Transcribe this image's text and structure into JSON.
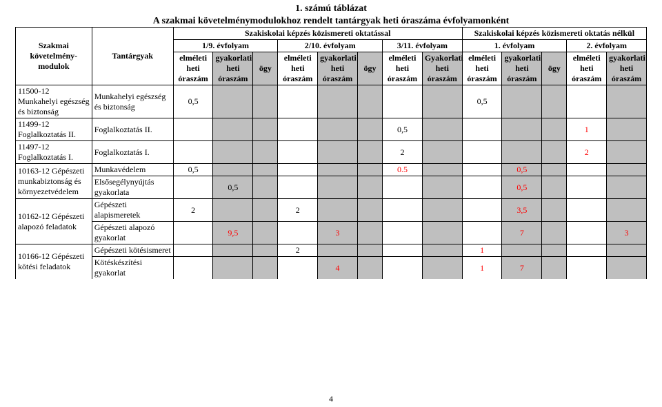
{
  "title": {
    "line1": "1. számú táblázat",
    "line2": "A szakmai követelménymodulokhoz rendelt tantárgyak heti óraszáma évfolyamonként"
  },
  "headers": {
    "module": "Szakmai követelmény-modulok",
    "subject": "Tantárgyak",
    "group_left": "Szakiskolai képzés közismereti oktatással",
    "group_right": "Szakiskolai képzés közismereti oktatás nélkül",
    "year_1_9": "1/9. évfolyam",
    "year_2_10": "2/10. évfolyam",
    "year_3_11": "3/11. évfolyam",
    "year_1": "1. évfolyam",
    "year_2": "2. évfolyam",
    "elm": "elméleti heti óraszám",
    "gyak": "gyakorlati heti óraszám",
    "gyak_cap": "Gyakorlati heti óraszám",
    "ogy": "ögy"
  },
  "modules": {
    "m1": "11500-12 Munkahelyi egészség és biztonság",
    "m2": "11499-12 Foglalkoztatás II.",
    "m3": "11497-12 Foglalkoztatás I.",
    "m4": "10163-12 Gépészeti munkabiztonság és környezetvédelem",
    "m5": "10162-12 Gépészeti alapozó feladatok",
    "m6": "10166-12 Gépészeti kötési feladatok"
  },
  "subjects": {
    "s1": "Munkahelyi egészség és biztonság",
    "s2": "Foglalkoztatás II.",
    "s3": "Foglalkoztatás I.",
    "s4a": "Munkavédelem",
    "s4b": "Elsősegélynyújtás gyakorlata",
    "s5a": "Gépészeti alapismeretek",
    "s5b": "Gépészeti alapozó gyakorlat",
    "s6a": "Gépészeti kötésismeret",
    "s6b": "Kötéskészítési gyakorlat"
  },
  "v": {
    "r1c1": "0,5",
    "r1c9": "0,5",
    "r2c7": "0,5",
    "r2c13": "1",
    "r3c7": "2",
    "r3c13": "2",
    "r4a_c1": "0,5",
    "r4a_c7": "0.5",
    "r4a_c10": "0,5",
    "r4b_c2": "0,5",
    "r4b_c10": "0,5",
    "r5a_c1": "2",
    "r5a_c4": "2",
    "r5a_c10": "3,5",
    "r5b_c2": "9,5",
    "r5b_c5": "3",
    "r5b_c10": "7",
    "r5b_c14": "3",
    "r6a_c4": "2",
    "r6a_c9": "1",
    "r6b_c5": "4",
    "r6b_c9": "1",
    "r6b_c10": "7"
  },
  "colors": {
    "grey": "#bfbfbf",
    "red": "#ff0000"
  },
  "page_number": "4"
}
